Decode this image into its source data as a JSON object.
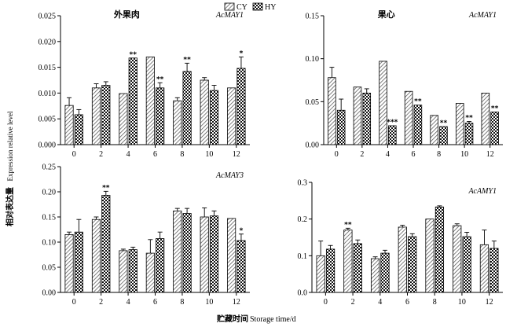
{
  "legend": [
    {
      "name": "CY",
      "pattern": "hatch"
    },
    {
      "name": "HY",
      "pattern": "check"
    }
  ],
  "ylabel_cn": "相对表达量",
  "ylabel_en": "Expression relative level",
  "xlabel_cn": "贮藏时间",
  "xlabel_en": "Storage time/d",
  "chart_data": [
    {
      "type": "bar",
      "title": "外果肉",
      "gene": "AcMAY1",
      "categories": [
        "0",
        "2",
        "4",
        "6",
        "8",
        "10",
        "12"
      ],
      "ylim": [
        0,
        0.025
      ],
      "yticks": [
        "0.000",
        "0.005",
        "0.010",
        "0.015",
        "0.020",
        "0.025"
      ],
      "series": [
        {
          "name": "CY",
          "values": [
            0.0076,
            0.011,
            0.0099,
            0.017,
            0.0085,
            0.0125,
            0.011
          ],
          "errors": [
            0.0015,
            0.0008,
            0,
            0,
            0.0006,
            0.0005,
            0
          ]
        },
        {
          "name": "HY",
          "values": [
            0.0058,
            0.0115,
            0.0168,
            0.011,
            0.0142,
            0.0105,
            0.0148
          ],
          "errors": [
            0.001,
            0.0007,
            0,
            0.001,
            0.0016,
            0.001,
            0.0022
          ]
        }
      ],
      "annotations": [
        {
          "index": 2,
          "series": "HY",
          "text": "**"
        },
        {
          "index": 3,
          "series": "HY",
          "text": "**"
        },
        {
          "index": 4,
          "series": "HY",
          "text": "**"
        },
        {
          "index": 6,
          "series": "HY",
          "text": "*"
        }
      ]
    },
    {
      "type": "bar",
      "title": "果心",
      "gene": "AcMAY1",
      "categories": [
        "0",
        "2",
        "4",
        "6",
        "8",
        "10",
        "12"
      ],
      "ylim": [
        0,
        0.15
      ],
      "yticks": [
        "0.00",
        "0.05",
        "0.10",
        "0.15"
      ],
      "series": [
        {
          "name": "CY",
          "values": [
            0.078,
            0.067,
            0.097,
            0.062,
            0.034,
            0.048,
            0.06
          ],
          "errors": [
            0.012,
            0,
            0,
            0,
            0,
            0,
            0
          ]
        },
        {
          "name": "HY",
          "values": [
            0.04,
            0.06,
            0.022,
            0.046,
            0.021,
            0.025,
            0.038
          ],
          "errors": [
            0.013,
            0.005,
            0,
            0,
            0,
            0.002,
            0
          ]
        }
      ],
      "annotations": [
        {
          "index": 2,
          "series": "HY",
          "text": "***"
        },
        {
          "index": 3,
          "series": "HY",
          "text": "**"
        },
        {
          "index": 4,
          "series": "HY",
          "text": "**"
        },
        {
          "index": 5,
          "series": "HY",
          "text": "**"
        },
        {
          "index": 6,
          "series": "HY",
          "text": "**"
        }
      ]
    },
    {
      "type": "bar",
      "title": "",
      "gene": "AcMAY3",
      "categories": [
        "0",
        "2",
        "4",
        "6",
        "8",
        "10",
        "12"
      ],
      "ylim": [
        0,
        0.25
      ],
      "yticks": [
        "0.00",
        "0.05",
        "0.10",
        "0.15",
        "0.20",
        "0.25"
      ],
      "series": [
        {
          "name": "CY",
          "values": [
            0.115,
            0.145,
            0.083,
            0.078,
            0.162,
            0.15,
            0.147
          ],
          "errors": [
            0.005,
            0.005,
            0.003,
            0.027,
            0.005,
            0.018,
            0
          ]
        },
        {
          "name": "HY",
          "values": [
            0.12,
            0.193,
            0.085,
            0.107,
            0.157,
            0.152,
            0.103
          ],
          "errors": [
            0.025,
            0.008,
            0.005,
            0.013,
            0.01,
            0.01,
            0.013
          ]
        }
      ],
      "annotations": [
        {
          "index": 1,
          "series": "HY",
          "text": "**"
        },
        {
          "index": 6,
          "series": "HY",
          "text": "*"
        }
      ]
    },
    {
      "type": "bar",
      "title": "",
      "gene": "AcAMY1",
      "categories": [
        "0",
        "2",
        "4",
        "6",
        "8",
        "10",
        "12"
      ],
      "ylim": [
        0,
        0.3
      ],
      "yticks": [
        "0.0",
        "0.1",
        "0.2",
        "0.3"
      ],
      "series": [
        {
          "name": "CY",
          "values": [
            0.1,
            0.17,
            0.092,
            0.178,
            0.2,
            0.182,
            0.13
          ],
          "errors": [
            0.04,
            0.005,
            0.005,
            0.005,
            0,
            0.005,
            0.04
          ]
        },
        {
          "name": "HY",
          "values": [
            0.118,
            0.133,
            0.107,
            0.152,
            0.233,
            0.152,
            0.12
          ],
          "errors": [
            0.01,
            0.01,
            0.008,
            0.008,
            0.003,
            0.012,
            0.02
          ]
        }
      ],
      "annotations": [
        {
          "index": 1,
          "series": "CY",
          "text": "**"
        }
      ]
    }
  ]
}
